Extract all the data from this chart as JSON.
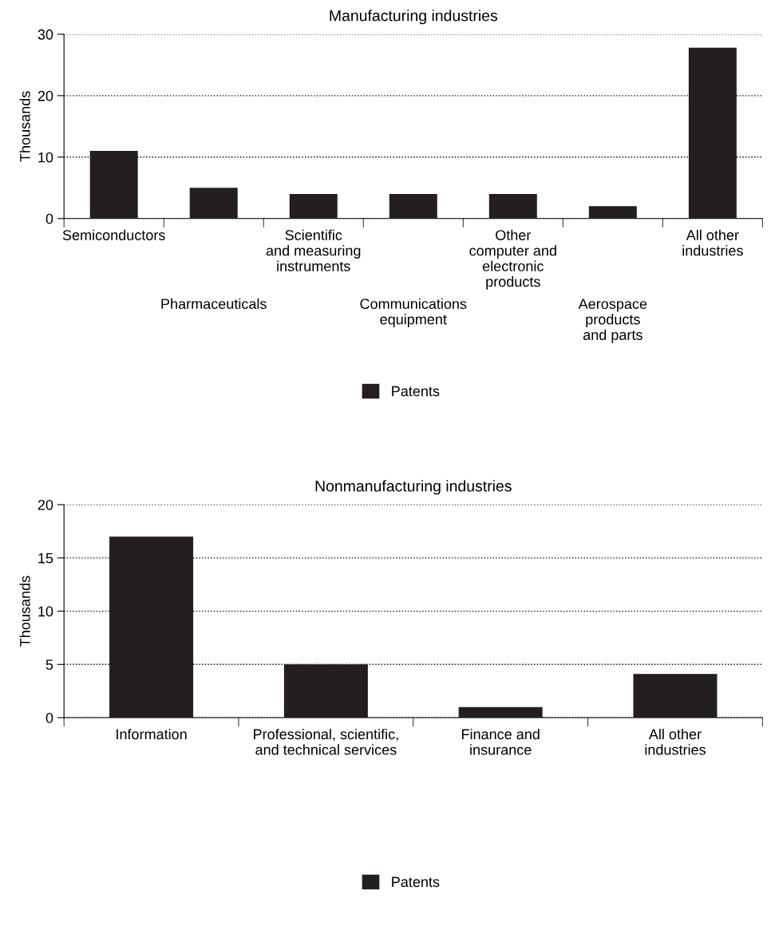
{
  "chart_data": [
    {
      "type": "bar",
      "title": "Manufacturing industries",
      "ylabel": "Thousands",
      "categories": [
        "Semiconductors",
        "Pharmaceuticals",
        "Scientific\nand measuring\ninstruments",
        "Communications\nequipment",
        "Other\ncomputer and\nelectronic\nproducts",
        "Aerospace\nproducts\nand parts",
        "All other\nindustries"
      ],
      "series": [
        {
          "name": "Patents",
          "color": "#231f20",
          "values": [
            11,
            5,
            4,
            4,
            4,
            2,
            27.8
          ]
        }
      ],
      "ylim": [
        0,
        30
      ],
      "yticks": [
        0,
        10,
        20,
        30
      ],
      "grid": "y",
      "legend": "bottom"
    },
    {
      "type": "bar",
      "title": "Nonmanufacturing industries",
      "ylabel": "Thousands",
      "categories": [
        "Information",
        "Professional, scientific,\nand technical services",
        "Finance and\ninsurance",
        "All other\nindustries"
      ],
      "series": [
        {
          "name": "Patents",
          "color": "#231f20",
          "values": [
            17,
            5,
            1,
            4.1
          ]
        }
      ],
      "ylim": [
        0,
        20
      ],
      "yticks": [
        0,
        5,
        10,
        15,
        20
      ],
      "grid": "y",
      "legend": "bottom"
    }
  ]
}
